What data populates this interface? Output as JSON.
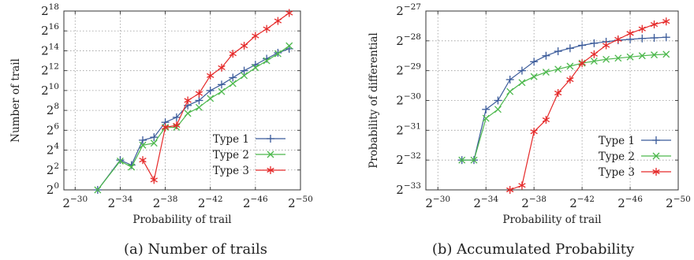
{
  "colors": {
    "type1": "#3b5b9a",
    "type2": "#4cb84c",
    "type3": "#e52a2a",
    "grid": "#9a9a9a",
    "frame": "#333333"
  },
  "chart_data": [
    {
      "type": "line",
      "caption": "(a) Number of trails",
      "xlabel": "Probability of trail",
      "ylabel": "Number of trail",
      "x_scale": "log2 probability, axis decreasing to the right",
      "x_ticks": [
        -30,
        -34,
        -38,
        -42,
        -46,
        -50
      ],
      "y_ticks": [
        0,
        2,
        4,
        6,
        8,
        10,
        12,
        14,
        16,
        18
      ],
      "xlim": [
        -29,
        -50
      ],
      "ylim": [
        0,
        18
      ],
      "tick_base": "2",
      "grid": "dotted",
      "legend_position": "bottom-right",
      "series": [
        {
          "name": "Type 1",
          "marker": "plus",
          "x": [
            -32,
            -34,
            -35,
            -36,
            -37,
            -38,
            -39,
            -40,
            -41,
            -42,
            -43,
            -44,
            -45,
            -46,
            -47,
            -48,
            -49
          ],
          "y": [
            0,
            3.0,
            2.5,
            5.0,
            5.3,
            6.8,
            7.3,
            8.5,
            9.0,
            10.0,
            10.6,
            11.3,
            12.0,
            12.6,
            13.2,
            13.8,
            14.2
          ]
        },
        {
          "name": "Type 2",
          "marker": "cross",
          "x": [
            -32,
            -34,
            -35,
            -36,
            -37,
            -38,
            -39,
            -40,
            -41,
            -42,
            -43,
            -44,
            -45,
            -46,
            -47,
            -48,
            -49
          ],
          "y": [
            0,
            2.9,
            2.3,
            4.5,
            4.7,
            6.3,
            6.3,
            7.7,
            8.3,
            9.2,
            9.9,
            10.7,
            11.5,
            12.3,
            13.0,
            13.7,
            14.5
          ]
        },
        {
          "name": "Type 3",
          "marker": "star",
          "x": [
            -36,
            -37,
            -38,
            -39,
            -40,
            -41,
            -42,
            -43,
            -44,
            -45,
            -46,
            -47,
            -48,
            -49
          ],
          "y": [
            3.0,
            1.0,
            6.3,
            6.5,
            9.0,
            9.7,
            11.5,
            12.3,
            13.7,
            14.5,
            15.5,
            16.2,
            17.0,
            17.8
          ]
        }
      ]
    },
    {
      "type": "line",
      "caption": "(b) Accumulated Probability",
      "xlabel": "Probability of trail",
      "ylabel": "Probability of differential",
      "x_scale": "log2 probability, axis decreasing to the right",
      "x_ticks": [
        -30,
        -34,
        -38,
        -42,
        -46,
        -50
      ],
      "y_ticks": [
        -33,
        -32,
        -31,
        -30,
        -29,
        -28,
        -27
      ],
      "xlim": [
        -29,
        -50
      ],
      "ylim": [
        -33,
        -27
      ],
      "tick_base": "2",
      "grid": "dotted",
      "legend_position": "bottom-right",
      "series": [
        {
          "name": "Type 1",
          "marker": "plus",
          "x": [
            -32,
            -33,
            -34,
            -35,
            -36,
            -37,
            -38,
            -39,
            -40,
            -41,
            -42,
            -43,
            -44,
            -45,
            -46,
            -47,
            -48,
            -49
          ],
          "y": [
            -32.0,
            -32.0,
            -30.3,
            -30.0,
            -29.3,
            -29.0,
            -28.7,
            -28.5,
            -28.35,
            -28.25,
            -28.15,
            -28.08,
            -28.03,
            -27.98,
            -27.95,
            -27.92,
            -27.9,
            -27.88
          ]
        },
        {
          "name": "Type 2",
          "marker": "cross",
          "x": [
            -32,
            -33,
            -34,
            -35,
            -36,
            -37,
            -38,
            -39,
            -40,
            -41,
            -42,
            -43,
            -44,
            -45,
            -46,
            -47,
            -48,
            -49
          ],
          "y": [
            -32.0,
            -32.0,
            -30.6,
            -30.3,
            -29.7,
            -29.4,
            -29.2,
            -29.05,
            -28.95,
            -28.85,
            -28.75,
            -28.68,
            -28.62,
            -28.58,
            -28.54,
            -28.5,
            -28.47,
            -28.45
          ]
        },
        {
          "name": "Type 3",
          "marker": "star",
          "x": [
            -36,
            -37,
            -38,
            -39,
            -40,
            -41,
            -42,
            -43,
            -44,
            -45,
            -46,
            -47,
            -48,
            -49
          ],
          "y": [
            -33.0,
            -32.85,
            -31.05,
            -30.65,
            -29.75,
            -29.3,
            -28.75,
            -28.45,
            -28.15,
            -27.95,
            -27.75,
            -27.6,
            -27.45,
            -27.35
          ]
        }
      ]
    }
  ]
}
